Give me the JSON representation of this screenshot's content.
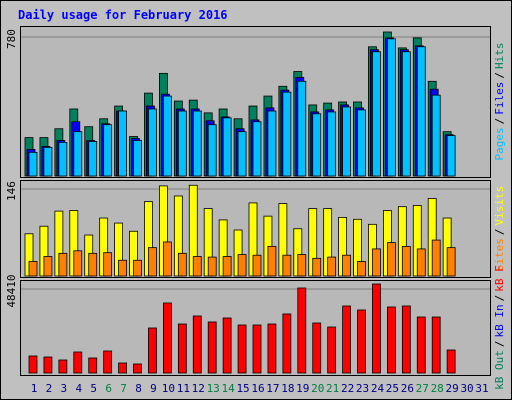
{
  "title": "Daily usage for February 2016",
  "legend_separator": "/",
  "chart_data": [
    {
      "type": "bar",
      "ylim": [
        0,
        780
      ],
      "yticks": [
        780
      ],
      "series": [
        {
          "name": "Hits",
          "color": "#00805c",
          "values": [
            208,
            208,
            256,
            363,
            267,
            310,
            379,
            214,
            449,
            556,
            406,
            411,
            342,
            363,
            310,
            379,
            433,
            486,
            566,
            385,
            395,
            401,
            401,
            700,
            780,
            694,
            748,
            513,
            240,
            null,
            null
          ]
        },
        {
          "name": "Files",
          "color": "#0000ff",
          "values": [
            144,
            160,
            192,
            294,
            192,
            283,
            352,
            203,
            379,
            443,
            363,
            363,
            299,
            320,
            256,
            304,
            369,
            465,
            534,
            347,
            358,
            385,
            369,
            684,
            748,
            684,
            705,
            470,
            224,
            null,
            null
          ]
        },
        {
          "name": "Pages",
          "color": "#00c0ff",
          "values": [
            128,
            155,
            182,
            240,
            187,
            278,
            352,
            192,
            363,
            433,
            352,
            352,
            278,
            315,
            240,
            294,
            352,
            454,
            513,
            337,
            347,
            374,
            358,
            673,
            743,
            673,
            700,
            438,
            219,
            null,
            null
          ]
        }
      ]
    },
    {
      "type": "bar",
      "ylim": [
        0,
        146
      ],
      "yticks": [
        146
      ],
      "series": [
        {
          "name": "Visits",
          "color": "#ffff00",
          "values": [
            67,
            79,
            103,
            104,
            65,
            92,
            84,
            71,
            118,
            143,
            127,
            144,
            107,
            89,
            73,
            116,
            95,
            115,
            75,
            107,
            107,
            93,
            90,
            82,
            104,
            110,
            112,
            123,
            92,
            null,
            null
          ]
        },
        {
          "name": "Sites",
          "color": "#ff8000",
          "values": [
            23,
            31,
            36,
            40,
            36,
            37,
            25,
            25,
            45,
            54,
            36,
            31,
            30,
            31,
            34,
            33,
            47,
            33,
            34,
            28,
            30,
            33,
            23,
            43,
            53,
            47,
            43,
            57,
            45,
            null,
            null
          ]
        }
      ]
    },
    {
      "type": "bar",
      "ylim": [
        0,
        48410
      ],
      "yticks": [
        48410
      ],
      "categories": [
        "1",
        "2",
        "3",
        "4",
        "5",
        "6",
        "7",
        "8",
        "9",
        "10",
        "11",
        "12",
        "13",
        "14",
        "15",
        "16",
        "17",
        "18",
        "19",
        "20",
        "21",
        "22",
        "23",
        "24",
        "25",
        "26",
        "27",
        "28",
        "29",
        "30",
        "31"
      ],
      "label_colors": [
        "#000080",
        "#000080",
        "#000080",
        "#000080",
        "#000080",
        "#008040",
        "#008040",
        "#000080",
        "#000080",
        "#000080",
        "#000080",
        "#000080",
        "#008040",
        "#008040",
        "#000080",
        "#000080",
        "#000080",
        "#000080",
        "#000080",
        "#008040",
        "#008040",
        "#000080",
        "#000080",
        "#000080",
        "#000080",
        "#000080",
        "#008040",
        "#008040",
        "#000080",
        "#000080",
        "#000080"
      ],
      "series": [
        {
          "name": "kB F",
          "color": "#ff0000",
          "values": [
            9250,
            8700,
            7070,
            11420,
            8160,
            11970,
            5440,
            4900,
            24480,
            38080,
            26650,
            31010,
            27740,
            29920,
            26110,
            26110,
            26650,
            32100,
            46240,
            27200,
            25020,
            36450,
            34270,
            48410,
            35900,
            36450,
            30460,
            30460,
            12510,
            null,
            null
          ]
        },
        {
          "name": "kB In",
          "color": "#0000ff",
          "values": [
            null,
            null,
            null,
            null,
            null,
            null,
            null,
            null,
            null,
            null,
            null,
            null,
            null,
            null,
            null,
            null,
            null,
            null,
            null,
            null,
            null,
            null,
            null,
            null,
            null,
            null,
            null,
            null,
            null,
            null,
            null
          ]
        },
        {
          "name": "kB Out",
          "color": "#00805c",
          "values": [
            null,
            null,
            null,
            null,
            null,
            null,
            null,
            null,
            null,
            null,
            null,
            null,
            null,
            null,
            null,
            null,
            null,
            null,
            null,
            null,
            null,
            null,
            null,
            null,
            null,
            null,
            null,
            null,
            null,
            null,
            null
          ]
        }
      ]
    }
  ]
}
